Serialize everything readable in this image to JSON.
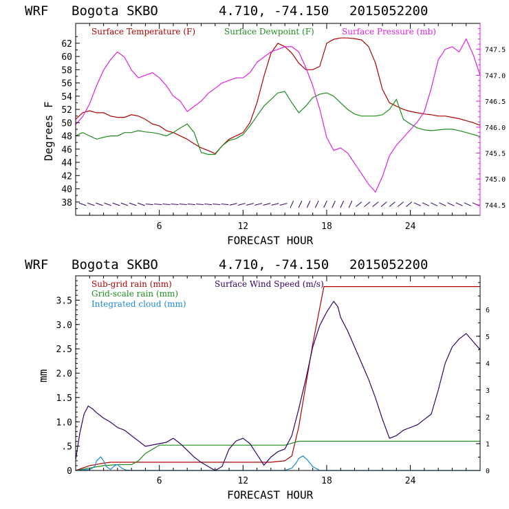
{
  "chart_data": [
    {
      "type": "line",
      "header": {
        "model": "WRF",
        "station": "Bogota SKBO",
        "coords": "4.710, -74.150",
        "init": "2015052200"
      },
      "ylabel": "Degrees F",
      "xlabel": "FORECAST HOUR",
      "xlim": [
        0,
        29
      ],
      "ylim": [
        36,
        65
      ],
      "x_ticks": [
        6,
        12,
        18,
        24
      ],
      "y_ticks": [
        38,
        40,
        42,
        44,
        46,
        48,
        50,
        52,
        54,
        56,
        58,
        60,
        62
      ],
      "y2_label_ticks": [
        "747.5",
        "747.0",
        "746.5",
        "746.0",
        "745.5",
        "745.0",
        "744.5"
      ],
      "y2_tick_values": [
        747.5,
        747.0,
        746.5,
        746.0,
        745.5,
        745.0,
        744.5
      ],
      "y2_lim": [
        744.3,
        748.0
      ],
      "colors": {
        "temp": "#b00000",
        "dew": "#1e8c1e",
        "press": "#e020e0",
        "wind": "#330066",
        "axis": "#000000",
        "right_axis": "#e020e0"
      },
      "series": [
        {
          "name": "Surface Temperature (F)",
          "axis": "left",
          "x": [
            0,
            0.5,
            1,
            1.5,
            2,
            2.5,
            3,
            3.5,
            4,
            4.5,
            5,
            5.5,
            6,
            6.5,
            7,
            7.5,
            8,
            8.5,
            9,
            9.5,
            10,
            10.5,
            11,
            11.5,
            12,
            12.5,
            13,
            13.5,
            14,
            14.5,
            15,
            15.5,
            16,
            16.5,
            17,
            17.5,
            18,
            18.5,
            19,
            19.5,
            20,
            20.5,
            21,
            21.5,
            22,
            22.5,
            23,
            23.5,
            24,
            24.5,
            25,
            25.5,
            26,
            26.5,
            27,
            27.5,
            28,
            28.5,
            29
          ],
          "values": [
            50.5,
            51.5,
            51.8,
            51.5,
            51.5,
            51,
            50.8,
            50.8,
            51.2,
            51,
            50.5,
            49.8,
            49.5,
            48.8,
            48.5,
            48,
            47.5,
            46.8,
            46.2,
            45.8,
            45.3,
            46.5,
            47.5,
            48,
            48.5,
            50,
            53,
            57,
            60.5,
            62,
            61.5,
            60.5,
            59,
            58,
            58,
            58.5,
            62,
            62.6,
            62.8,
            62.8,
            62.7,
            62.5,
            61.5,
            59,
            55,
            53,
            52.5,
            52,
            51.7,
            51.5,
            51.3,
            51.2,
            51,
            51,
            50.8,
            50.6,
            50.3,
            50,
            49.6
          ]
        },
        {
          "name": "Surface Dewpoint (F)",
          "axis": "left",
          "x": [
            0,
            0.5,
            1,
            1.5,
            2,
            2.5,
            3,
            3.5,
            4,
            4.5,
            5,
            5.5,
            6,
            6.5,
            7,
            7.5,
            8,
            8.5,
            9,
            9.5,
            10,
            10.5,
            11,
            11.5,
            12,
            12.5,
            13,
            13.5,
            14,
            14.5,
            15,
            15.5,
            16,
            16.5,
            17,
            17.5,
            18,
            18.5,
            19,
            19.5,
            20,
            20.5,
            21,
            21.5,
            22,
            22.5,
            23,
            23.5,
            24,
            24.5,
            25,
            25.5,
            26,
            26.5,
            27,
            27.5,
            28,
            28.5,
            29
          ],
          "values": [
            48,
            48.5,
            48,
            47.5,
            47.8,
            48,
            48,
            48.5,
            48.5,
            48.8,
            48.6,
            48.5,
            48.3,
            48,
            48.5,
            49.2,
            49.8,
            48.5,
            45.5,
            45.2,
            45.2,
            46.5,
            47.3,
            47.6,
            48.2,
            49.5,
            51,
            52.5,
            53.5,
            54.5,
            54.7,
            53,
            51.5,
            52.5,
            53.8,
            54.3,
            54.5,
            54,
            53,
            52,
            51.3,
            51,
            51,
            51,
            51.2,
            52,
            53.5,
            50.5,
            49.8,
            49.2,
            48.9,
            48.8,
            48.9,
            49,
            49,
            48.8,
            48.5,
            48.2,
            47.9
          ]
        },
        {
          "name": "Surface Pressure (mb)",
          "axis": "right",
          "x": [
            0,
            0.5,
            1,
            1.5,
            2,
            2.5,
            3,
            3.5,
            4,
            4.5,
            5,
            5.5,
            6,
            6.5,
            7,
            7.5,
            8,
            8.5,
            9,
            9.5,
            10,
            10.5,
            11,
            11.5,
            12,
            12.5,
            13,
            13.5,
            14,
            14.5,
            15,
            15.5,
            16,
            16.5,
            17,
            17.5,
            18,
            18.5,
            19,
            19.5,
            20,
            20.5,
            21,
            21.5,
            22,
            22.5,
            23,
            23.5,
            24,
            24.5,
            25,
            25.5,
            26,
            26.5,
            27,
            27.5,
            28,
            28.5,
            29
          ],
          "values": [
            746.05,
            746.2,
            746.45,
            746.8,
            747.1,
            747.3,
            747.45,
            747.35,
            747.1,
            746.95,
            747.0,
            747.05,
            746.95,
            746.8,
            746.6,
            746.5,
            746.3,
            746.4,
            746.5,
            746.65,
            746.75,
            746.85,
            746.9,
            746.95,
            746.95,
            747.05,
            747.25,
            747.35,
            747.45,
            747.5,
            747.55,
            747.55,
            747.45,
            747.15,
            746.8,
            746.35,
            745.8,
            745.55,
            745.6,
            745.5,
            745.3,
            745.1,
            744.9,
            744.75,
            745.05,
            745.45,
            745.65,
            745.8,
            745.95,
            746.1,
            746.3,
            746.75,
            747.3,
            747.5,
            747.55,
            747.45,
            747.7,
            747.4,
            747.0
          ]
        }
      ],
      "wind_barbs": {
        "name": "Surface Wind",
        "color": "#330066"
      }
    },
    {
      "type": "line",
      "header": {
        "model": "WRF",
        "station": "Bogota SKBO",
        "coords": "4.710, -74.150",
        "init": "2015052200"
      },
      "ylabel": "mm",
      "xlabel": "FORECAST HOUR",
      "xlim": [
        0,
        29
      ],
      "ylim": [
        0,
        4.0
      ],
      "x_ticks": [
        6,
        12,
        18,
        24
      ],
      "y_ticks": [
        0,
        0.5,
        1.0,
        1.5,
        2.0,
        2.5,
        3.0,
        3.5
      ],
      "y_tick_labels": [
        "0",
        ".5",
        "1.0",
        "1.5",
        "2.0",
        "2.5",
        "3.0",
        "3.5"
      ],
      "y2_ticks": [
        0,
        1,
        2,
        3,
        4,
        5,
        6
      ],
      "y2_lim": [
        0,
        7.25
      ],
      "colors": {
        "subgrid": "#b00000",
        "gridscale": "#1e8c1e",
        "cloud": "#1a8ad4",
        "wind": "#330066"
      },
      "series": [
        {
          "name": "Sub-grid rain (mm)",
          "axis": "left",
          "x": [
            0,
            1,
            2,
            2.5,
            3,
            6,
            9,
            12,
            13,
            14,
            15,
            15.5,
            16,
            17,
            17.8,
            18,
            20,
            24,
            29
          ],
          "values": [
            0,
            0.1,
            0.15,
            0.17,
            0.17,
            0.17,
            0.17,
            0.17,
            0.17,
            0.17,
            0.2,
            0.3,
            0.9,
            2.6,
            3.78,
            3.78,
            3.78,
            3.78,
            3.78
          ]
        },
        {
          "name": "Grid-scale rain (mm)",
          "axis": "left",
          "x": [
            0,
            1,
            2,
            3,
            4,
            4.5,
            5,
            6,
            7,
            9,
            12,
            15,
            16,
            18,
            24,
            29
          ],
          "values": [
            0,
            0.05,
            0.1,
            0.12,
            0.12,
            0.2,
            0.35,
            0.52,
            0.52,
            0.52,
            0.52,
            0.52,
            0.6,
            0.6,
            0.6,
            0.6
          ]
        },
        {
          "name": "Integrated cloud (mm)",
          "axis": "left",
          "x": [
            0,
            1,
            1.2,
            1.4,
            1.5,
            1.8,
            2,
            2.2,
            2.5,
            2.8,
            3,
            3.3,
            3.6,
            4,
            5,
            8,
            12,
            15,
            15.5,
            15.8,
            16,
            16.3,
            16.6,
            17,
            17.5,
            18,
            24,
            29
          ],
          "values": [
            0,
            0.02,
            0.05,
            0.1,
            0.2,
            0.28,
            0.2,
            0.08,
            0.02,
            0.1,
            0.12,
            0.05,
            0.01,
            0,
            0,
            0,
            0,
            0,
            0.05,
            0.15,
            0.25,
            0.3,
            0.22,
            0.08,
            0,
            0,
            0,
            0
          ]
        },
        {
          "name": "Surface Wind Speed (m/s)",
          "axis": "right",
          "x": [
            0,
            0.3,
            0.6,
            0.9,
            1.2,
            1.5,
            2,
            2.5,
            3,
            3.5,
            4,
            5,
            6,
            6.5,
            7,
            7.5,
            8,
            8.5,
            9,
            9.5,
            10,
            10.5,
            11,
            11.5,
            12,
            12.5,
            13,
            13.5,
            14,
            14.5,
            15,
            15.5,
            16,
            16.5,
            17,
            17.5,
            18,
            18.5,
            18.8,
            19,
            19.5,
            20,
            20.5,
            21,
            21.5,
            22,
            22.5,
            23,
            23.5,
            24,
            24.5,
            25,
            25.5,
            26,
            26.5,
            27,
            27.5,
            28,
            28.5,
            29
          ],
          "values": [
            0.4,
            1.4,
            2.1,
            2.4,
            2.3,
            2.15,
            1.95,
            1.8,
            1.6,
            1.5,
            1.3,
            0.9,
            1.0,
            1.05,
            1.2,
            1.0,
            0.75,
            0.5,
            0.3,
            0.15,
            0,
            0.15,
            0.8,
            1.1,
            1.2,
            1.0,
            0.6,
            0.2,
            0.5,
            0.7,
            0.8,
            1.3,
            2.3,
            3.4,
            4.6,
            5.4,
            5.9,
            6.3,
            6.1,
            5.7,
            5.2,
            4.6,
            4.0,
            3.4,
            2.7,
            1.9,
            1.2,
            1.3,
            1.5,
            1.6,
            1.7,
            1.9,
            2.1,
            3.0,
            4.0,
            4.6,
            4.9,
            5.1,
            4.8,
            4.5
          ]
        }
      ]
    }
  ],
  "chart1": {
    "model": "WRF",
    "station": "Bogota SKBO",
    "coords": "4.710, -74.150",
    "init": "2015052200",
    "legend": {
      "temp": "Surface Temperature (F)",
      "dew": "Surface Dewpoint (F)",
      "press": "Surface Pressure (mb)"
    },
    "ylabel": "Degrees F",
    "xlabel": "FORECAST HOUR"
  },
  "chart2": {
    "model": "WRF",
    "station": "Bogota SKBO",
    "coords": "4.710, -74.150",
    "init": "2015052200",
    "legend": {
      "subgrid": "Sub-grid rain (mm)",
      "gridscale": "Grid-scale rain (mm)",
      "cloud": "Integrated cloud (mm)",
      "wind": "Surface Wind Speed (m/s)"
    },
    "ylabel": "mm",
    "xlabel": "FORECAST HOUR"
  }
}
